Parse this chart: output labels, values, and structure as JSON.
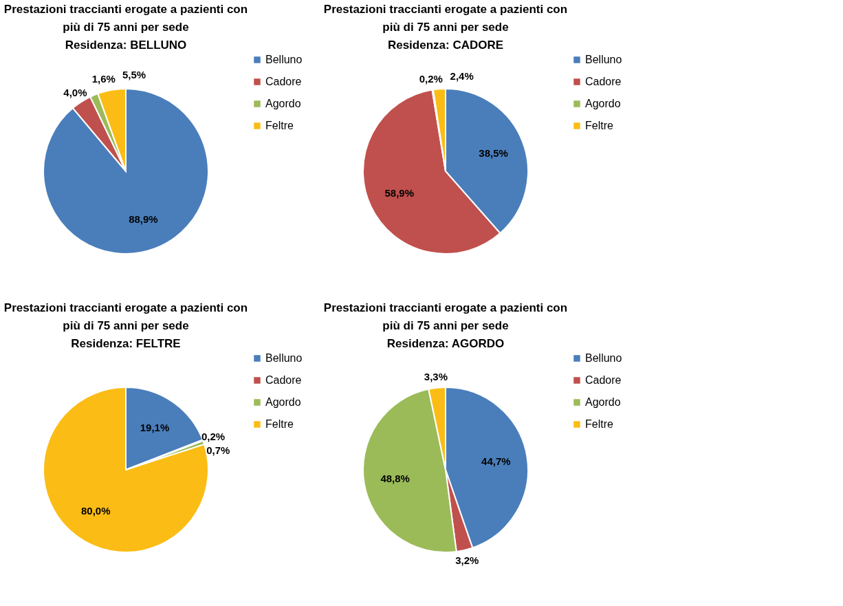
{
  "chart_data": [
    {
      "type": "pie",
      "title": "Prestazioni traccianti erogate a pazienti con più di 75 anni per sede",
      "subtitle": "Residenza: BELLUNO",
      "categories": [
        "Belluno",
        "Cadore",
        "Agordo",
        "Feltre"
      ],
      "values": [
        88.9,
        4.0,
        1.6,
        5.5
      ],
      "value_labels": [
        "88,9%",
        "4,0%",
        "1,6%",
        "5,5%"
      ],
      "colors": [
        "#4a7ebb",
        "#c0504d",
        "#9bbb59",
        "#fbbd15"
      ],
      "legend": "right"
    },
    {
      "type": "pie",
      "title": "Prestazioni traccianti erogate a pazienti con più di 75 anni per sede",
      "subtitle": "Residenza: CADORE",
      "categories": [
        "Belluno",
        "Cadore",
        "Agordo",
        "Feltre"
      ],
      "values": [
        38.5,
        58.9,
        0.2,
        2.4
      ],
      "value_labels": [
        "38,5%",
        "58,9%",
        "0,2%",
        "2,4%"
      ],
      "colors": [
        "#4a7ebb",
        "#c0504d",
        "#9bbb59",
        "#fbbd15"
      ],
      "legend": "right"
    },
    {
      "type": "pie",
      "title": "Prestazioni traccianti erogate a pazienti con più di 75 anni per sede",
      "subtitle": "Residenza: FELTRE",
      "categories": [
        "Belluno",
        "Cadore",
        "Agordo",
        "Feltre"
      ],
      "values": [
        19.1,
        0.2,
        0.7,
        80.0
      ],
      "value_labels": [
        "19,1%",
        "0,2%",
        "0,7%",
        "80,0%"
      ],
      "colors": [
        "#4a7ebb",
        "#c0504d",
        "#9bbb59",
        "#fbbd15"
      ],
      "legend": "right"
    },
    {
      "type": "pie",
      "title": "Prestazioni traccianti erogate a pazienti con più di 75 anni per sede",
      "subtitle": "Residenza: AGORDO",
      "categories": [
        "Belluno",
        "Cadore",
        "Agordo",
        "Feltre"
      ],
      "values": [
        44.7,
        3.2,
        48.8,
        3.3
      ],
      "value_labels": [
        "44,7%",
        "3,2%",
        "48,8%",
        "3,3%"
      ],
      "colors": [
        "#4a7ebb",
        "#c0504d",
        "#9bbb59",
        "#fbbd15"
      ],
      "legend": "right"
    }
  ]
}
